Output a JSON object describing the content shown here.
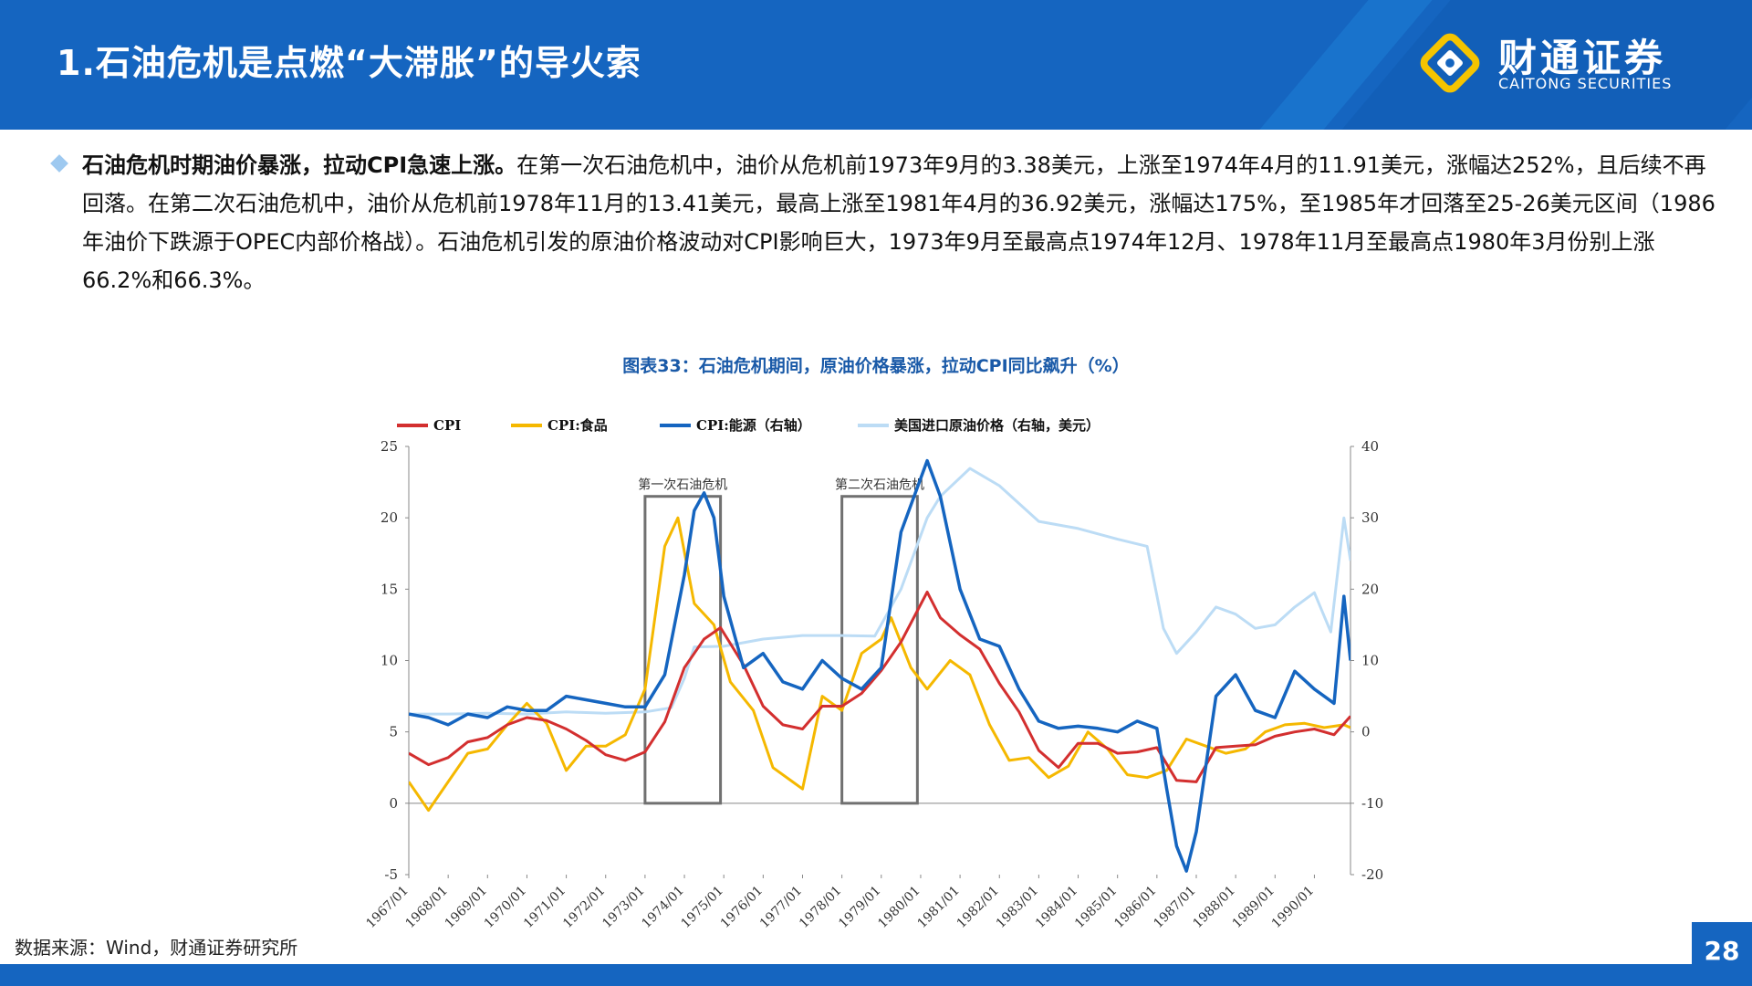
{
  "header": {
    "title": "1.石油危机是点燃“大滞胀”的导火索",
    "logo_cn": "财通证券",
    "logo_en": "CAITONG SECURITIES"
  },
  "body": {
    "lead": "石油危机时期油价暴涨，拉动CPI急速上涨。",
    "text": "在第一次石油危机中，油价从危机前1973年9月的3.38美元，上涨至1974年4月的11.91美元，涨幅达252%，且后续不再回落。在第二次石油危机中，油价从危机前1978年11月的13.41美元，最高上涨至1981年4月的36.92美元，涨幅达175%，至1985年才回落至25-26美元区间（1986年油价下跌源于OPEC内部价格战）。石油危机引发的原油价格波动对CPI影响巨大，1973年9月至最高点1974年12月、1978年11月至最高点1980年3月份别上涨66.2%和66.3%。"
  },
  "figure_title": "图表33：石油危机期间，原油价格暴涨，拉动CPI同比飙升（%）",
  "source": "数据来源：Wind，财通证券研究所",
  "page_number": "28",
  "colors": {
    "header": "#1565c0",
    "cpi": "#d32f2f",
    "food": "#f5b800",
    "energy": "#1565c0",
    "oil": "#bcdcf5"
  },
  "chart_data": {
    "type": "line",
    "x_range": [
      "1967/01",
      "1990/12"
    ],
    "x_tick_labels": [
      "1967/01",
      "1968/01",
      "1969/01",
      "1970/01",
      "1971/01",
      "1972/01",
      "1973/01",
      "1974/01",
      "1975/01",
      "1976/01",
      "1977/01",
      "1978/01",
      "1979/01",
      "1980/01",
      "1981/01",
      "1982/01",
      "1983/01",
      "1984/01",
      "1985/01",
      "1986/01",
      "1987/01",
      "1988/01",
      "1989/01",
      "1990/01"
    ],
    "y_left": {
      "min": -5,
      "max": 25,
      "ticks": [
        -5,
        0,
        5,
        10,
        15,
        20,
        25
      ]
    },
    "y_right": {
      "min": -20,
      "max": 40,
      "ticks": [
        -20,
        -10,
        0,
        10,
        20,
        30,
        40
      ]
    },
    "annotations": [
      {
        "label": "第一次石油危机",
        "x_start": "1973/01",
        "x_end": "1974/12",
        "y_start": 0,
        "y_end": 21.5
      },
      {
        "label": "第二次石油危机",
        "x_start": "1978/01",
        "x_end": "1979/12",
        "y_start": 0,
        "y_end": 21.5
      }
    ],
    "series": [
      {
        "name": "CPI",
        "axis": "left",
        "color_key": "cpi",
        "points": [
          [
            "1967/01",
            3.5
          ],
          [
            "1967/07",
            2.7
          ],
          [
            "1968/01",
            3.2
          ],
          [
            "1968/07",
            4.3
          ],
          [
            "1969/01",
            4.6
          ],
          [
            "1969/07",
            5.5
          ],
          [
            "1970/01",
            6.0
          ],
          [
            "1970/07",
            5.8
          ],
          [
            "1971/01",
            5.2
          ],
          [
            "1971/07",
            4.4
          ],
          [
            "1972/01",
            3.4
          ],
          [
            "1972/07",
            3.0
          ],
          [
            "1973/01",
            3.6
          ],
          [
            "1973/07",
            5.7
          ],
          [
            "1974/01",
            9.5
          ],
          [
            "1974/07",
            11.5
          ],
          [
            "1974/12",
            12.3
          ],
          [
            "1975/07",
            9.7
          ],
          [
            "1976/01",
            6.8
          ],
          [
            "1976/07",
            5.5
          ],
          [
            "1977/01",
            5.2
          ],
          [
            "1977/07",
            6.8
          ],
          [
            "1978/01",
            6.8
          ],
          [
            "1978/07",
            7.7
          ],
          [
            "1979/01",
            9.3
          ],
          [
            "1979/07",
            11.3
          ],
          [
            "1980/03",
            14.8
          ],
          [
            "1980/07",
            13.0
          ],
          [
            "1981/01",
            11.8
          ],
          [
            "1981/07",
            10.8
          ],
          [
            "1982/01",
            8.4
          ],
          [
            "1982/07",
            6.4
          ],
          [
            "1983/01",
            3.7
          ],
          [
            "1983/07",
            2.5
          ],
          [
            "1984/01",
            4.2
          ],
          [
            "1984/07",
            4.2
          ],
          [
            "1985/01",
            3.5
          ],
          [
            "1985/07",
            3.6
          ],
          [
            "1986/01",
            3.9
          ],
          [
            "1986/07",
            1.6
          ],
          [
            "1987/01",
            1.5
          ],
          [
            "1987/07",
            3.9
          ],
          [
            "1988/01",
            4.0
          ],
          [
            "1988/07",
            4.1
          ],
          [
            "1989/01",
            4.7
          ],
          [
            "1989/07",
            5.0
          ],
          [
            "1990/01",
            5.2
          ],
          [
            "1990/07",
            4.8
          ],
          [
            "1990/12",
            6.1
          ]
        ]
      },
      {
        "name": "CPI:食品",
        "axis": "left",
        "color_key": "food",
        "points": [
          [
            "1967/01",
            1.5
          ],
          [
            "1967/07",
            -0.5
          ],
          [
            "1968/01",
            1.5
          ],
          [
            "1968/07",
            3.5
          ],
          [
            "1969/01",
            3.8
          ],
          [
            "1969/07",
            5.5
          ],
          [
            "1970/01",
            7.0
          ],
          [
            "1970/07",
            5.6
          ],
          [
            "1971/01",
            2.3
          ],
          [
            "1971/07",
            4.0
          ],
          [
            "1972/01",
            4.0
          ],
          [
            "1972/07",
            4.8
          ],
          [
            "1973/01",
            8.0
          ],
          [
            "1973/07",
            18.0
          ],
          [
            "1973/11",
            20.0
          ],
          [
            "1974/04",
            14.0
          ],
          [
            "1974/10",
            12.5
          ],
          [
            "1975/03",
            8.5
          ],
          [
            "1975/10",
            6.5
          ],
          [
            "1976/04",
            2.5
          ],
          [
            "1976/10",
            1.5
          ],
          [
            "1977/01",
            1.0
          ],
          [
            "1977/07",
            7.5
          ],
          [
            "1978/01",
            6.5
          ],
          [
            "1978/07",
            10.5
          ],
          [
            "1979/01",
            11.5
          ],
          [
            "1979/04",
            13.0
          ],
          [
            "1979/10",
            9.5
          ],
          [
            "1980/03",
            8.0
          ],
          [
            "1980/10",
            10.0
          ],
          [
            "1981/04",
            9.0
          ],
          [
            "1981/10",
            5.5
          ],
          [
            "1982/04",
            3.0
          ],
          [
            "1982/10",
            3.2
          ],
          [
            "1983/04",
            1.8
          ],
          [
            "1983/10",
            2.6
          ],
          [
            "1984/04",
            5.0
          ],
          [
            "1984/10",
            3.8
          ],
          [
            "1985/04",
            2.0
          ],
          [
            "1985/10",
            1.8
          ],
          [
            "1986/04",
            2.3
          ],
          [
            "1986/10",
            4.5
          ],
          [
            "1987/04",
            4.0
          ],
          [
            "1987/10",
            3.5
          ],
          [
            "1988/04",
            3.8
          ],
          [
            "1988/10",
            5.0
          ],
          [
            "1989/04",
            5.5
          ],
          [
            "1989/10",
            5.6
          ],
          [
            "1990/04",
            5.3
          ],
          [
            "1990/10",
            5.5
          ],
          [
            "1990/12",
            5.3
          ]
        ]
      },
      {
        "name": "CPI:能源（右轴）",
        "axis": "right",
        "color_key": "energy",
        "points": [
          [
            "1967/01",
            2.5
          ],
          [
            "1967/07",
            2.0
          ],
          [
            "1968/01",
            1.0
          ],
          [
            "1968/07",
            2.5
          ],
          [
            "1969/01",
            2.0
          ],
          [
            "1969/07",
            3.5
          ],
          [
            "1970/01",
            3.0
          ],
          [
            "1970/07",
            3.0
          ],
          [
            "1971/01",
            5.0
          ],
          [
            "1971/07",
            4.5
          ],
          [
            "1972/01",
            4.0
          ],
          [
            "1972/07",
            3.5
          ],
          [
            "1973/01",
            3.5
          ],
          [
            "1973/07",
            8.0
          ],
          [
            "1974/01",
            22.0
          ],
          [
            "1974/04",
            31.0
          ],
          [
            "1974/07",
            33.5
          ],
          [
            "1974/10",
            30.0
          ],
          [
            "1975/01",
            19.0
          ],
          [
            "1975/07",
            9.0
          ],
          [
            "1976/01",
            11.0
          ],
          [
            "1976/07",
            7.0
          ],
          [
            "1977/01",
            6.0
          ],
          [
            "1977/07",
            10.0
          ],
          [
            "1978/01",
            7.5
          ],
          [
            "1978/07",
            6.0
          ],
          [
            "1979/01",
            9.0
          ],
          [
            "1979/07",
            28.0
          ],
          [
            "1980/03",
            38.0
          ],
          [
            "1980/07",
            33.0
          ],
          [
            "1981/01",
            20.0
          ],
          [
            "1981/07",
            13.0
          ],
          [
            "1982/01",
            12.0
          ],
          [
            "1982/07",
            6.0
          ],
          [
            "1983/01",
            1.5
          ],
          [
            "1983/07",
            0.5
          ],
          [
            "1984/01",
            0.8
          ],
          [
            "1984/07",
            0.5
          ],
          [
            "1985/01",
            0.0
          ],
          [
            "1985/07",
            1.5
          ],
          [
            "1986/01",
            0.5
          ],
          [
            "1986/04",
            -8.0
          ],
          [
            "1986/07",
            -16.0
          ],
          [
            "1986/10",
            -19.5
          ],
          [
            "1987/01",
            -14.0
          ],
          [
            "1987/07",
            5.0
          ],
          [
            "1988/01",
            8.0
          ],
          [
            "1988/07",
            3.0
          ],
          [
            "1989/01",
            2.0
          ],
          [
            "1989/07",
            8.5
          ],
          [
            "1990/01",
            6.0
          ],
          [
            "1990/07",
            4.0
          ],
          [
            "1990/10",
            19.0
          ],
          [
            "1990/12",
            10.0
          ]
        ]
      },
      {
        "name": "美国进口原油价格（右轴，美元）",
        "axis": "right",
        "color_key": "oil",
        "points": [
          [
            "1967/01",
            2.5
          ],
          [
            "1968/01",
            2.5
          ],
          [
            "1969/01",
            2.6
          ],
          [
            "1970/01",
            2.5
          ],
          [
            "1971/01",
            2.8
          ],
          [
            "1972/01",
            2.6
          ],
          [
            "1973/01",
            2.8
          ],
          [
            "1973/09",
            3.38
          ],
          [
            "1974/01",
            7.5
          ],
          [
            "1974/04",
            11.91
          ],
          [
            "1975/01",
            12.0
          ],
          [
            "1976/01",
            13.0
          ],
          [
            "1977/01",
            13.5
          ],
          [
            "1978/01",
            13.5
          ],
          [
            "1978/11",
            13.41
          ],
          [
            "1979/07",
            20.0
          ],
          [
            "1980/03",
            30.0
          ],
          [
            "1980/07",
            33.0
          ],
          [
            "1981/04",
            36.92
          ],
          [
            "1982/01",
            34.5
          ],
          [
            "1983/01",
            29.5
          ],
          [
            "1984/01",
            28.5
          ],
          [
            "1985/01",
            27.0
          ],
          [
            "1985/10",
            26.0
          ],
          [
            "1986/03",
            14.5
          ],
          [
            "1986/07",
            11.0
          ],
          [
            "1987/01",
            14.0
          ],
          [
            "1987/07",
            17.5
          ],
          [
            "1988/01",
            16.5
          ],
          [
            "1988/07",
            14.5
          ],
          [
            "1989/01",
            15.0
          ],
          [
            "1989/07",
            17.5
          ],
          [
            "1990/01",
            19.5
          ],
          [
            "1990/06",
            14.0
          ],
          [
            "1990/10",
            30.0
          ],
          [
            "1990/12",
            24.0
          ]
        ]
      }
    ]
  }
}
